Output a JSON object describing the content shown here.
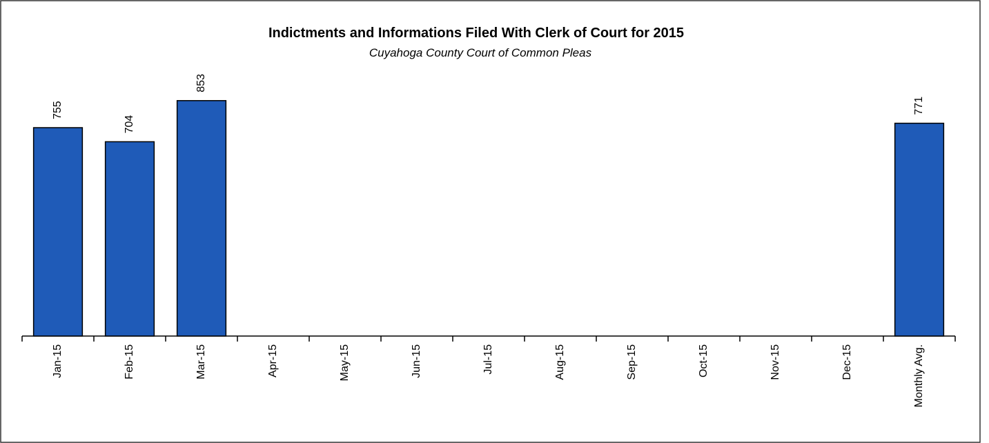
{
  "chart_data": {
    "type": "bar",
    "title": "Indictments and Informations Filed With Clerk of Court for 2015",
    "subtitle": "Cuyahoga County Court of Common Pleas",
    "categories": [
      "Jan-15",
      "Feb-15",
      "Mar-15",
      "Apr-15",
      "May-15",
      "Jun-15",
      "Jul-15",
      "Aug-15",
      "Sep-15",
      "Oct-15",
      "Nov-15",
      "Dec-15",
      "Monthly Avg."
    ],
    "values": [
      755,
      704,
      853,
      null,
      null,
      null,
      null,
      null,
      null,
      null,
      null,
      null,
      771
    ],
    "color": "#1f5bb8",
    "ylim": [
      0,
      1000
    ]
  }
}
